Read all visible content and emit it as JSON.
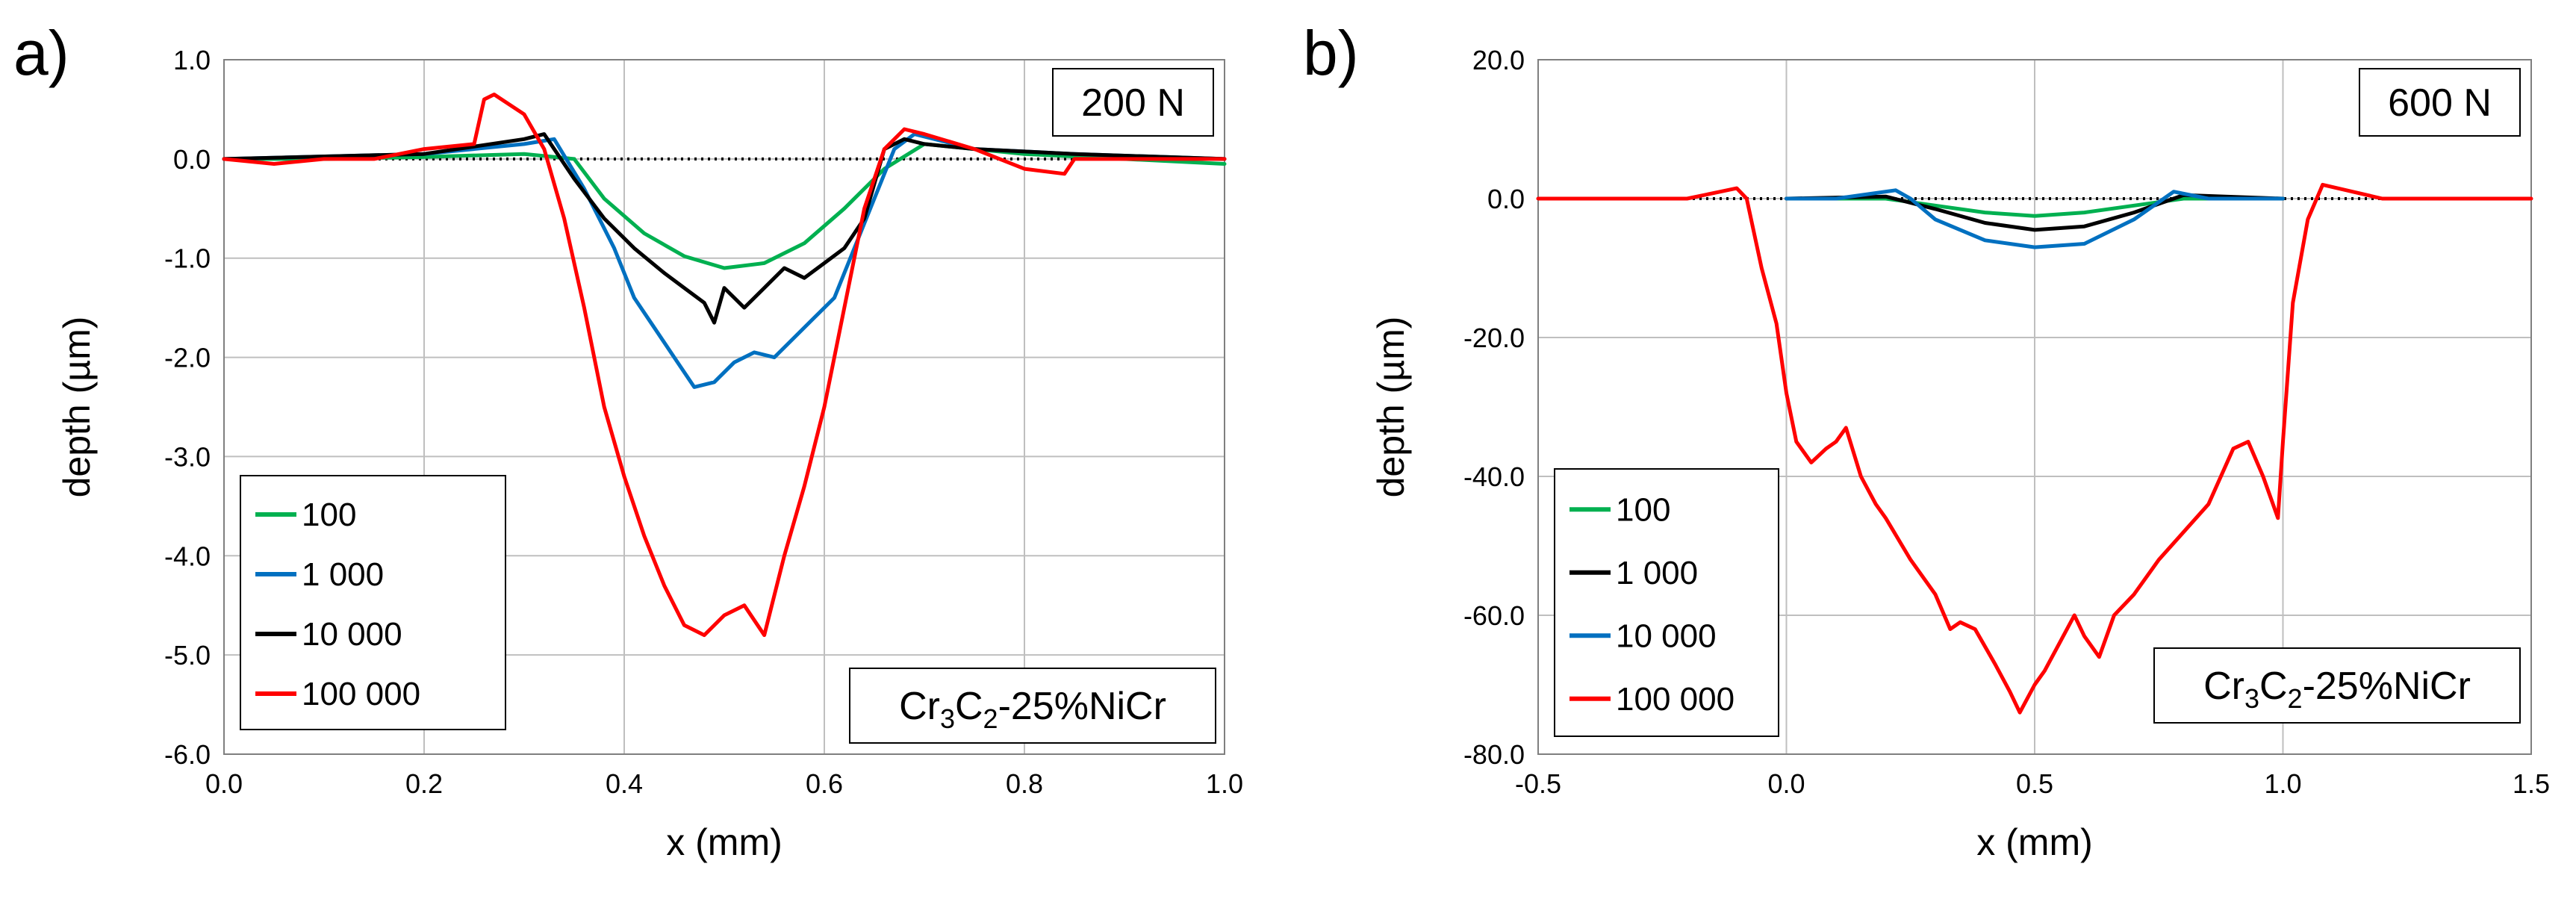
{
  "figure_labels": [
    "a)",
    "b)"
  ],
  "chart_data": [
    {
      "type": "line",
      "panel": "a)",
      "load_label": "200 N",
      "material_label": {
        "base": "Cr",
        "sub1": "3",
        "mid": "C",
        "sub2": "2",
        "tail": "-25%NiCr"
      },
      "xlabel": "x (mm)",
      "ylabel": "depth (µm)",
      "xlim": [
        0.0,
        1.0
      ],
      "ylim": [
        -6.0,
        1.0
      ],
      "xticks": [
        0.0,
        0.2,
        0.4,
        0.6,
        0.8,
        1.0
      ],
      "yticks": [
        1.0,
        0.0,
        -1.0,
        -2.0,
        -3.0,
        -4.0,
        -5.0,
        -6.0
      ],
      "xtick_labels": [
        "0.0",
        "0.2",
        "0.4",
        "0.6",
        "0.8",
        "1.0"
      ],
      "ytick_labels": [
        "1.0",
        "0.0",
        "-1.0",
        "-2.0",
        "-3.0",
        "-4.0",
        "-5.0",
        "-6.0"
      ],
      "grid": true,
      "legend_position": "bottom-left",
      "reference_line": 0.0,
      "series": [
        {
          "name": "100",
          "color": "#00b050",
          "x": [
            0.0,
            0.1,
            0.2,
            0.3,
            0.35,
            0.38,
            0.42,
            0.46,
            0.5,
            0.54,
            0.58,
            0.62,
            0.66,
            0.7,
            0.8,
            0.9,
            1.0
          ],
          "y": [
            0.0,
            0.0,
            0.02,
            0.05,
            0.0,
            -0.4,
            -0.75,
            -0.98,
            -1.1,
            -1.05,
            -0.85,
            -0.5,
            -0.1,
            0.15,
            0.05,
            0.0,
            -0.05
          ]
        },
        {
          "name": "1 000",
          "color": "#0070c0",
          "x": [
            0.0,
            0.2,
            0.3,
            0.33,
            0.36,
            0.39,
            0.41,
            0.43,
            0.45,
            0.47,
            0.49,
            0.51,
            0.53,
            0.55,
            0.57,
            0.59,
            0.61,
            0.63,
            0.65,
            0.67,
            0.69,
            0.75,
            0.85,
            1.0
          ],
          "y": [
            0.0,
            0.05,
            0.15,
            0.2,
            -0.3,
            -0.9,
            -1.4,
            -1.7,
            -2.0,
            -2.3,
            -2.25,
            -2.05,
            -1.95,
            -2.0,
            -1.8,
            -1.6,
            -1.4,
            -0.9,
            -0.4,
            0.1,
            0.25,
            0.1,
            0.05,
            0.0
          ]
        },
        {
          "name": "10 000",
          "color": "#000000",
          "x": [
            0.0,
            0.2,
            0.3,
            0.32,
            0.35,
            0.38,
            0.41,
            0.44,
            0.46,
            0.48,
            0.49,
            0.5,
            0.52,
            0.54,
            0.56,
            0.58,
            0.6,
            0.62,
            0.64,
            0.66,
            0.68,
            0.7,
            0.75,
            0.85,
            1.0
          ],
          "y": [
            0.0,
            0.05,
            0.2,
            0.25,
            -0.2,
            -0.6,
            -0.9,
            -1.15,
            -1.3,
            -1.45,
            -1.65,
            -1.3,
            -1.5,
            -1.3,
            -1.1,
            -1.2,
            -1.05,
            -0.9,
            -0.6,
            0.1,
            0.2,
            0.15,
            0.1,
            0.05,
            0.0
          ]
        },
        {
          "name": "100 000",
          "color": "#ff0000",
          "x": [
            0.0,
            0.05,
            0.1,
            0.15,
            0.2,
            0.25,
            0.26,
            0.27,
            0.3,
            0.32,
            0.34,
            0.36,
            0.38,
            0.4,
            0.42,
            0.44,
            0.46,
            0.48,
            0.5,
            0.52,
            0.54,
            0.56,
            0.58,
            0.6,
            0.62,
            0.64,
            0.66,
            0.68,
            0.7,
            0.75,
            0.8,
            0.84,
            0.85,
            0.9,
            1.0
          ],
          "y": [
            0.0,
            -0.05,
            0.0,
            0.0,
            0.1,
            0.15,
            0.6,
            0.65,
            0.45,
            0.1,
            -0.6,
            -1.5,
            -2.5,
            -3.2,
            -3.8,
            -4.3,
            -4.7,
            -4.8,
            -4.6,
            -4.5,
            -4.8,
            -4.0,
            -3.3,
            -2.5,
            -1.5,
            -0.5,
            0.1,
            0.3,
            0.25,
            0.1,
            -0.1,
            -0.15,
            0.0,
            0.0,
            0.0
          ]
        }
      ]
    },
    {
      "type": "line",
      "panel": "b)",
      "load_label": "600 N",
      "material_label": {
        "base": "Cr",
        "sub1": "3",
        "mid": "C",
        "sub2": "2",
        "tail": "-25%NiCr"
      },
      "xlabel": "x (mm)",
      "ylabel": "depth (µm)",
      "xlim": [
        -0.5,
        1.5
      ],
      "ylim": [
        -80.0,
        20.0
      ],
      "xticks": [
        -0.5,
        0.0,
        0.5,
        1.0,
        1.5
      ],
      "yticks": [
        20.0,
        0.0,
        -20.0,
        -40.0,
        -60.0,
        -80.0
      ],
      "xtick_labels": [
        "-0.5",
        "0.0",
        "0.5",
        "1.0",
        "1.5"
      ],
      "ytick_labels": [
        "20.0",
        "0.0",
        "-20.0",
        "-40.0",
        "-60.0",
        "-80.0"
      ],
      "grid": true,
      "legend_position": "bottom-left",
      "reference_line": 0.0,
      "series": [
        {
          "name": "100",
          "color": "#00b050",
          "x": [
            0.0,
            0.2,
            0.3,
            0.4,
            0.5,
            0.6,
            0.7,
            0.8,
            1.0
          ],
          "y": [
            0.0,
            0.0,
            -1.0,
            -2.0,
            -2.5,
            -2.0,
            -1.0,
            0.0,
            0.0
          ]
        },
        {
          "name": "1 000",
          "color": "#000000",
          "x": [
            0.0,
            0.2,
            0.3,
            0.4,
            0.5,
            0.6,
            0.7,
            0.8,
            1.0
          ],
          "y": [
            0.0,
            0.3,
            -1.5,
            -3.5,
            -4.5,
            -4.0,
            -2.0,
            0.5,
            0.0
          ]
        },
        {
          "name": "10 000",
          "color": "#0070c0",
          "x": [
            0.0,
            0.1,
            0.22,
            0.25,
            0.3,
            0.4,
            0.5,
            0.6,
            0.7,
            0.78,
            0.85,
            1.0
          ],
          "y": [
            0.0,
            0.0,
            1.2,
            0.0,
            -3.0,
            -6.0,
            -7.0,
            -6.5,
            -3.0,
            1.0,
            0.0,
            0.0
          ]
        },
        {
          "name": "100 000",
          "color": "#ff0000",
          "x": [
            -0.5,
            -0.2,
            -0.1,
            -0.08,
            -0.05,
            -0.02,
            0.0,
            0.02,
            0.05,
            0.08,
            0.1,
            0.12,
            0.15,
            0.18,
            0.2,
            0.25,
            0.3,
            0.33,
            0.35,
            0.38,
            0.42,
            0.45,
            0.47,
            0.5,
            0.52,
            0.55,
            0.58,
            0.6,
            0.63,
            0.66,
            0.7,
            0.75,
            0.8,
            0.85,
            0.9,
            0.93,
            0.96,
            0.99,
            1.0,
            1.02,
            1.05,
            1.08,
            1.2,
            1.5
          ],
          "y": [
            0.0,
            0.0,
            1.5,
            0.0,
            -10.0,
            -18.0,
            -28.0,
            -35.0,
            -38.0,
            -36.0,
            -35.0,
            -33.0,
            -40.0,
            -44.0,
            -46.0,
            -52.0,
            -57.0,
            -62.0,
            -61.0,
            -62.0,
            -67.0,
            -71.0,
            -74.0,
            -70.0,
            -68.0,
            -64.0,
            -60.0,
            -63.0,
            -66.0,
            -60.0,
            -57.0,
            -52.0,
            -48.0,
            -44.0,
            -36.0,
            -35.0,
            -40.0,
            -46.0,
            -35.0,
            -15.0,
            -3.0,
            2.0,
            0.0,
            0.0
          ]
        }
      ]
    }
  ]
}
